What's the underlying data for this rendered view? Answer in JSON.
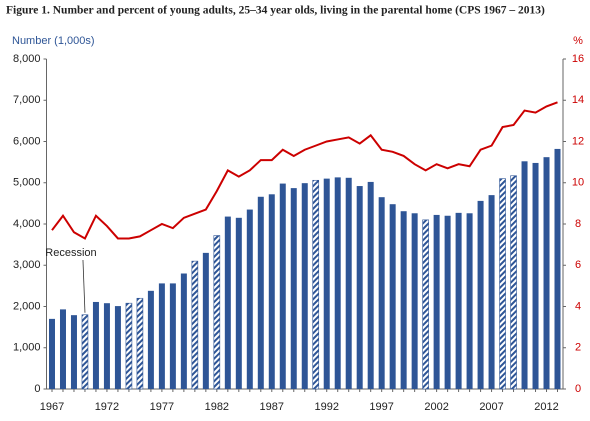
{
  "chart_data": {
    "type": "bar",
    "title": "Figure 1. Number and percent of young adults, 25–34 year olds, living in the parental home (CPS 1967 – 2013)",
    "y_label": "Number (1,000s)",
    "y2_label": "%",
    "categories": [
      "1967",
      null,
      null,
      null,
      null,
      "1972",
      null,
      null,
      null,
      null,
      "1977",
      null,
      null,
      null,
      null,
      "1982",
      null,
      null,
      null,
      null,
      "1987",
      null,
      null,
      null,
      null,
      "1992",
      null,
      null,
      null,
      null,
      "1997",
      null,
      null,
      null,
      null,
      "2002",
      null,
      null,
      null,
      null,
      "2007",
      null,
      null,
      null,
      null,
      "2012",
      null
    ],
    "series": [
      {
        "type": "bar",
        "color": "#2e5596",
        "values": [
          1700,
          1930,
          1790,
          1800,
          2110,
          2080,
          2010,
          2080,
          2200,
          2380,
          2560,
          2560,
          2800,
          3100,
          3300,
          3720,
          4180,
          4150,
          4350,
          4660,
          4720,
          4980,
          4870,
          4990,
          5060,
          5100,
          5130,
          5120,
          4920,
          5020,
          4650,
          4480,
          4310,
          4260,
          4100,
          4220,
          4200,
          4270,
          4260,
          4560,
          4700,
          5100,
          5170,
          5520,
          5480,
          5620,
          5820
        ],
        "hatched": [
          3,
          7,
          8,
          13,
          15,
          24,
          34,
          41,
          42
        ]
      },
      {
        "type": "line",
        "color": "#cc0000",
        "axis": "y2",
        "values": [
          7.7,
          8.4,
          7.6,
          7.3,
          8.4,
          7.9,
          7.3,
          7.3,
          7.4,
          7.7,
          8.0,
          7.8,
          8.3,
          8.5,
          8.7,
          9.6,
          10.6,
          10.3,
          10.6,
          11.1,
          11.1,
          11.6,
          11.3,
          11.6,
          11.8,
          12.0,
          12.1,
          12.2,
          11.9,
          12.3,
          11.6,
          11.5,
          11.3,
          10.9,
          10.6,
          10.9,
          10.7,
          10.9,
          10.8,
          11.6,
          11.8,
          12.7,
          12.8,
          13.5,
          13.4,
          13.7,
          13.9
        ]
      }
    ],
    "annotation": {
      "text": "Recession",
      "index": 3
    },
    "ylim": [
      0,
      8000
    ],
    "yticks": [
      0,
      {
        "value": 1000,
        "label": "1,000"
      },
      {
        "value": 2000,
        "label": "2,000"
      },
      {
        "value": 3000,
        "label": "3,000"
      },
      {
        "value": 4000,
        "label": "4,000"
      },
      {
        "value": 5000,
        "label": "5,000"
      },
      {
        "value": 6000,
        "label": "6,000"
      },
      {
        "value": 7000,
        "label": "7,000"
      },
      {
        "value": 8000,
        "label": "8,000"
      }
    ],
    "y2lim": [
      0,
      16
    ],
    "y2ticks": [
      0,
      2,
      4,
      6,
      8,
      10,
      12,
      14,
      16
    ],
    "grid": false
  }
}
